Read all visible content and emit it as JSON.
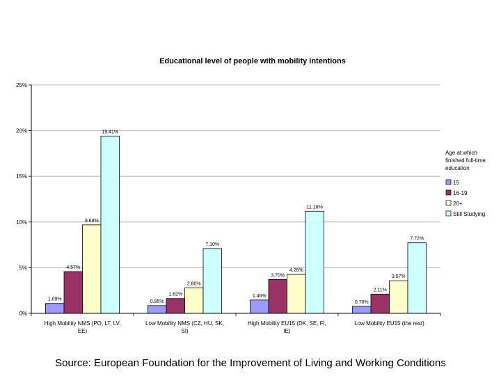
{
  "chart_data": {
    "type": "bar",
    "title": "Educational level of people with mobility intentions",
    "categories": [
      "High Mobility NMS (PO, LT, LV, EE)",
      "Low Mobility NMS (CZ, HU, SK, SI)",
      "High Mobility EU15 (DK, SE, FI, IE)",
      "Low Mobility EU15 (the rest)"
    ],
    "series": [
      {
        "name": "15",
        "color": "#9999ff",
        "values": [
          1.09,
          0.85,
          1.46,
          0.76
        ],
        "labels": [
          "1.09%",
          "0.85%",
          "1.46%",
          "0.76%"
        ]
      },
      {
        "name": "16-19",
        "color": "#993366",
        "values": [
          4.57,
          1.62,
          3.7,
          2.11
        ],
        "labels": [
          "4.57%",
          "1.62%",
          "3.70%",
          "2.11%"
        ]
      },
      {
        "name": "20+",
        "color": "#ffffcc",
        "values": [
          9.69,
          2.8,
          4.26,
          3.57
        ],
        "labels": [
          "9.69%",
          "2.80%",
          "4.26%",
          "3.57%"
        ]
      },
      {
        "name": "Still Studying",
        "color": "#ccffff",
        "values": [
          19.41,
          7.1,
          11.18,
          7.72
        ],
        "labels": [
          "19.41%",
          "7.10%",
          "11.18%",
          "7.72%"
        ]
      }
    ],
    "legend_title": [
      "Age at which",
      "finished full-time",
      "education"
    ],
    "legend_position": "right",
    "ylim": [
      0,
      25
    ],
    "yticks": [
      0,
      5,
      10,
      15,
      20,
      25
    ],
    "ytick_labels": [
      "0%",
      "5%",
      "10%",
      "15%",
      "20%",
      "25%"
    ],
    "grid": true,
    "xlabel": "",
    "ylabel": ""
  },
  "footer": {
    "source": "Source: European Foundation for the Improvement of Living and Working Conditions"
  }
}
